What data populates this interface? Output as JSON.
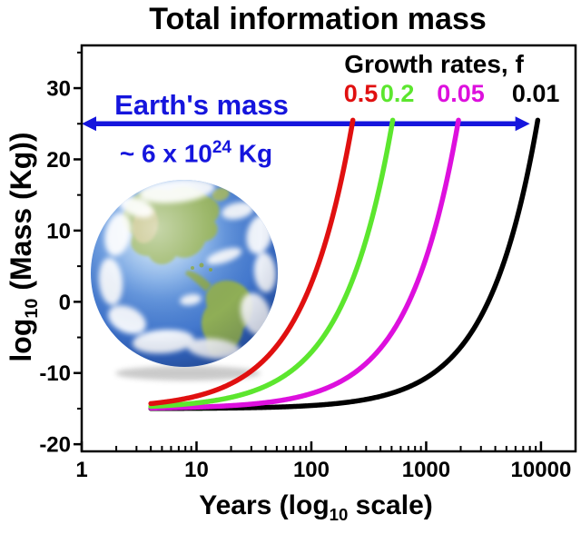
{
  "chart_data": {
    "type": "line",
    "title": "Total information mass",
    "xlabel": "Years (log10 scale)",
    "xlabel_parts": {
      "prefix": "Years (log",
      "sub": "10",
      "suffix": " scale)"
    },
    "ylabel": "log10 (Mass (Kg))",
    "ylabel_parts": {
      "prefix": "log",
      "sub": "10",
      "suffix": " (Mass (Kg))"
    },
    "x_scale": "log10",
    "xlim": [
      1,
      20000
    ],
    "ylim": [
      -21,
      36
    ],
    "x_major_ticks": [
      1,
      10,
      100,
      1000,
      10000
    ],
    "x_tick_labels": [
      "1",
      "10",
      "100",
      "1000",
      "10000"
    ],
    "x_minor_ticks_rule": "2-9 within each decade",
    "y_major_ticks": [
      30,
      20,
      10,
      0,
      -10,
      -20
    ],
    "y_minor_ticks": [
      35,
      25,
      15,
      5,
      -5,
      -15
    ],
    "grid": false,
    "legend_title": "Growth rates, f",
    "legend_position": "top-right inside plot",
    "model": {
      "log10_initial_mass": -15,
      "start_year": 4,
      "curve_top_log10_mass": 25.5
    },
    "series": [
      {
        "label": "0.5",
        "f": 0.5,
        "color": "#e01010",
        "years_to_reach_earth_mass": 227,
        "label_year": 270
      },
      {
        "label": "0.2",
        "f": 0.2,
        "color": "#5ce62e",
        "years_to_reach_earth_mass": 505,
        "label_year": 560
      },
      {
        "label": "0.05",
        "f": 0.05,
        "color": "#dd10dd",
        "years_to_reach_earth_mass": 1888,
        "label_year": 2000
      },
      {
        "label": "0.01",
        "f": 0.01,
        "color": "#000000",
        "years_to_reach_earth_mass": 9257,
        "label_year": 9000
      }
    ],
    "annotation": {
      "line1": "Earth's mass",
      "line2": "~ 6 x 10^24 Kg",
      "line2_parts": {
        "prefix": "~ 6 x 10",
        "sup": "24",
        "suffix": " Kg"
      },
      "color": "#1515dd",
      "arrow_mass_level": 25,
      "arrow_year_span": [
        1,
        8000
      ],
      "arrow_style": "double-headed horizontal"
    },
    "earth_image": {
      "alt": "Photo of planet Earth (Americas view) inside plot",
      "ocean_color": "#3a6fc4",
      "land_color": "#8fae56"
    },
    "frame_color": "#000000",
    "background_color": "#ffffff"
  }
}
